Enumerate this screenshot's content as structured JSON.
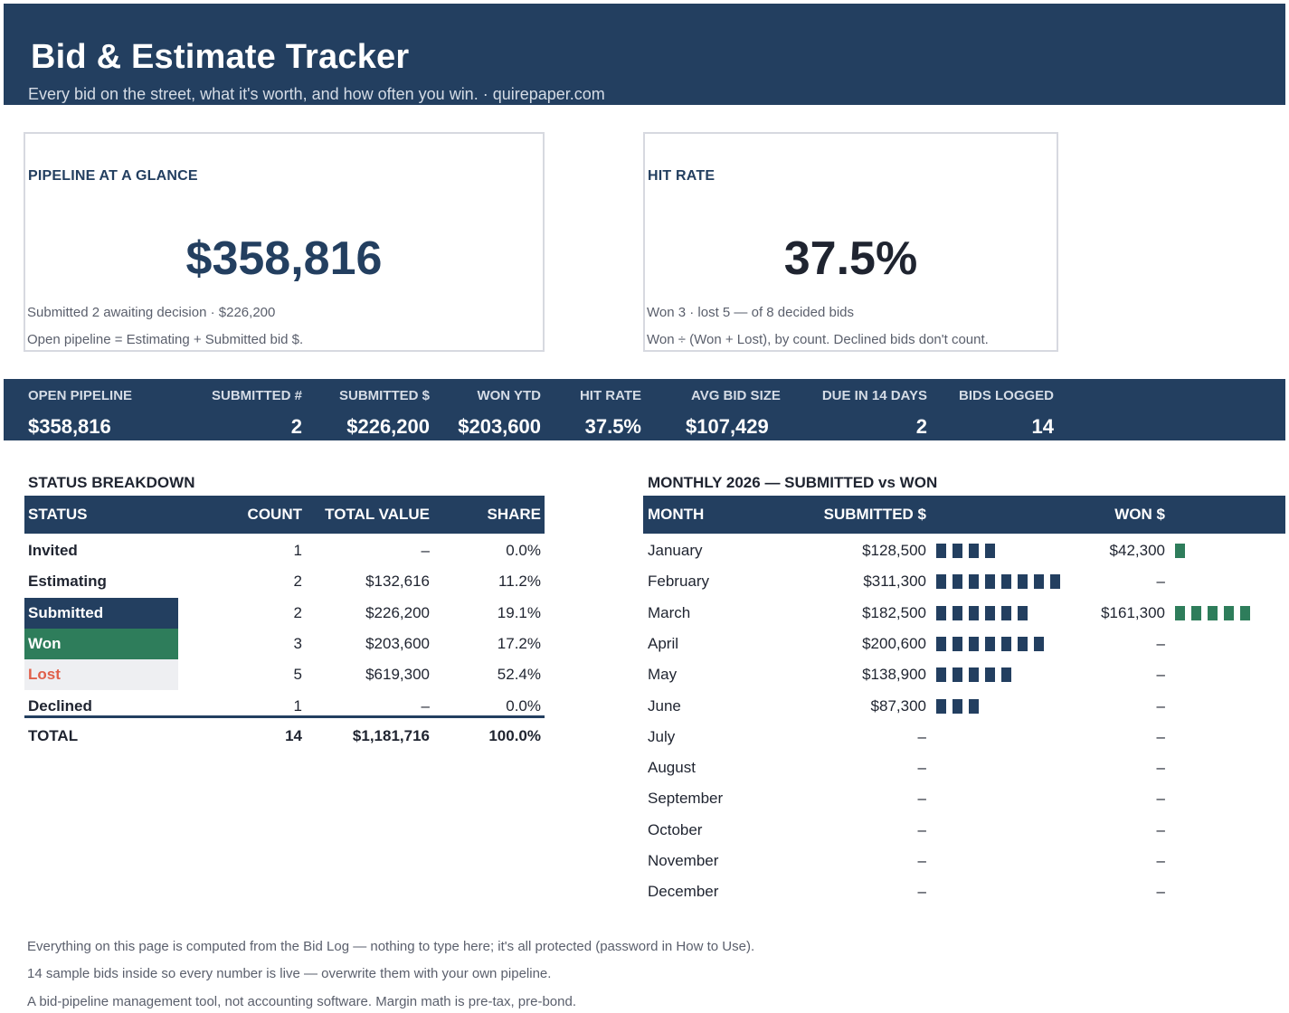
{
  "header": {
    "title": "Bid & Estimate Tracker",
    "subtitle": "Every bid on the street, what it's worth, and how often you win.  ·  quirepaper.com"
  },
  "cards": {
    "pipeline": {
      "label": "PIPELINE AT A GLANCE",
      "value": "$358,816",
      "note1": "Submitted 2 awaiting decision  ·  $226,200",
      "note2": "Open pipeline = Estimating + Submitted bid $."
    },
    "hitrate": {
      "label": "HIT RATE",
      "value": "37.5%",
      "note1": "Won 3 · lost 5 — of 8 decided bids",
      "note2": "Won ÷ (Won + Lost), by count. Declined bids don't count."
    }
  },
  "kpis": [
    {
      "label": "OPEN PIPELINE",
      "value": "$358,816"
    },
    {
      "label": "SUBMITTED #",
      "value": "2"
    },
    {
      "label": "SUBMITTED $",
      "value": "$226,200"
    },
    {
      "label": "WON YTD",
      "value": "$203,600"
    },
    {
      "label": "HIT RATE",
      "value": "37.5%"
    },
    {
      "label": "AVG BID SIZE",
      "value": "$107,429"
    },
    {
      "label": "DUE IN 14 DAYS",
      "value": "2"
    },
    {
      "label": "BIDS LOGGED",
      "value": "14"
    }
  ],
  "status_breakdown": {
    "title": "STATUS BREAKDOWN",
    "columns": [
      "STATUS",
      "COUNT",
      "TOTAL VALUE",
      "SHARE"
    ],
    "rows": [
      {
        "status": "Invited",
        "count": "1",
        "total": "–",
        "share": "0.0%"
      },
      {
        "status": "Estimating",
        "count": "2",
        "total": "$132,616",
        "share": "11.2%"
      },
      {
        "status": "Submitted",
        "count": "2",
        "total": "$226,200",
        "share": "19.1%"
      },
      {
        "status": "Won",
        "count": "3",
        "total": "$203,600",
        "share": "17.2%"
      },
      {
        "status": "Lost",
        "count": "5",
        "total": "$619,300",
        "share": "52.4%"
      },
      {
        "status": "Declined",
        "count": "1",
        "total": "–",
        "share": "0.0%"
      }
    ],
    "total": {
      "status": "TOTAL",
      "count": "14",
      "total": "$1,181,716",
      "share": "100.0%"
    },
    "colors": {
      "submitted": "#233f60",
      "won": "#2e7d5b",
      "lost_text": "#e0604a",
      "lost_bg": "#eeeff2"
    }
  },
  "monthly": {
    "title": "MONTHLY 2026 — SUBMITTED vs WON",
    "columns": [
      "MONTH",
      "SUBMITTED $",
      "WON $"
    ],
    "rows": [
      {
        "month": "January",
        "submitted": "$128,500",
        "won": "$42,300",
        "sub_blocks": 4,
        "won_blocks": 1
      },
      {
        "month": "February",
        "submitted": "$311,300",
        "won": "–",
        "sub_blocks": 8,
        "won_blocks": 0
      },
      {
        "month": "March",
        "submitted": "$182,500",
        "won": "$161,300",
        "sub_blocks": 6,
        "won_blocks": 5
      },
      {
        "month": "April",
        "submitted": "$200,600",
        "won": "–",
        "sub_blocks": 7,
        "won_blocks": 0
      },
      {
        "month": "May",
        "submitted": "$138,900",
        "won": "–",
        "sub_blocks": 5,
        "won_blocks": 0
      },
      {
        "month": "June",
        "submitted": "$87,300",
        "won": "–",
        "sub_blocks": 3,
        "won_blocks": 0
      },
      {
        "month": "July",
        "submitted": "–",
        "won": "–",
        "sub_blocks": 0,
        "won_blocks": 0
      },
      {
        "month": "August",
        "submitted": "–",
        "won": "–",
        "sub_blocks": 0,
        "won_blocks": 0
      },
      {
        "month": "September",
        "submitted": "–",
        "won": "–",
        "sub_blocks": 0,
        "won_blocks": 0
      },
      {
        "month": "October",
        "submitted": "–",
        "won": "–",
        "sub_blocks": 0,
        "won_blocks": 0
      },
      {
        "month": "November",
        "submitted": "–",
        "won": "–",
        "sub_blocks": 0,
        "won_blocks": 0
      },
      {
        "month": "December",
        "submitted": "–",
        "won": "–",
        "sub_blocks": 0,
        "won_blocks": 0
      }
    ],
    "colors": {
      "submitted_bar": "#233f60",
      "won_bar": "#2e7d5b"
    }
  },
  "footnotes": [
    "Everything on this page is computed from the Bid Log — nothing to type here; it's all protected (password in How to Use).",
    "14 sample bids inside so every number is live — overwrite them with your own pipeline.",
    "A bid-pipeline management tool, not accounting software. Margin math is pre-tax, pre-bond."
  ],
  "theme": {
    "navy": "#233f60",
    "green": "#2e7d5b",
    "muted_text": "#5a5f6c"
  }
}
